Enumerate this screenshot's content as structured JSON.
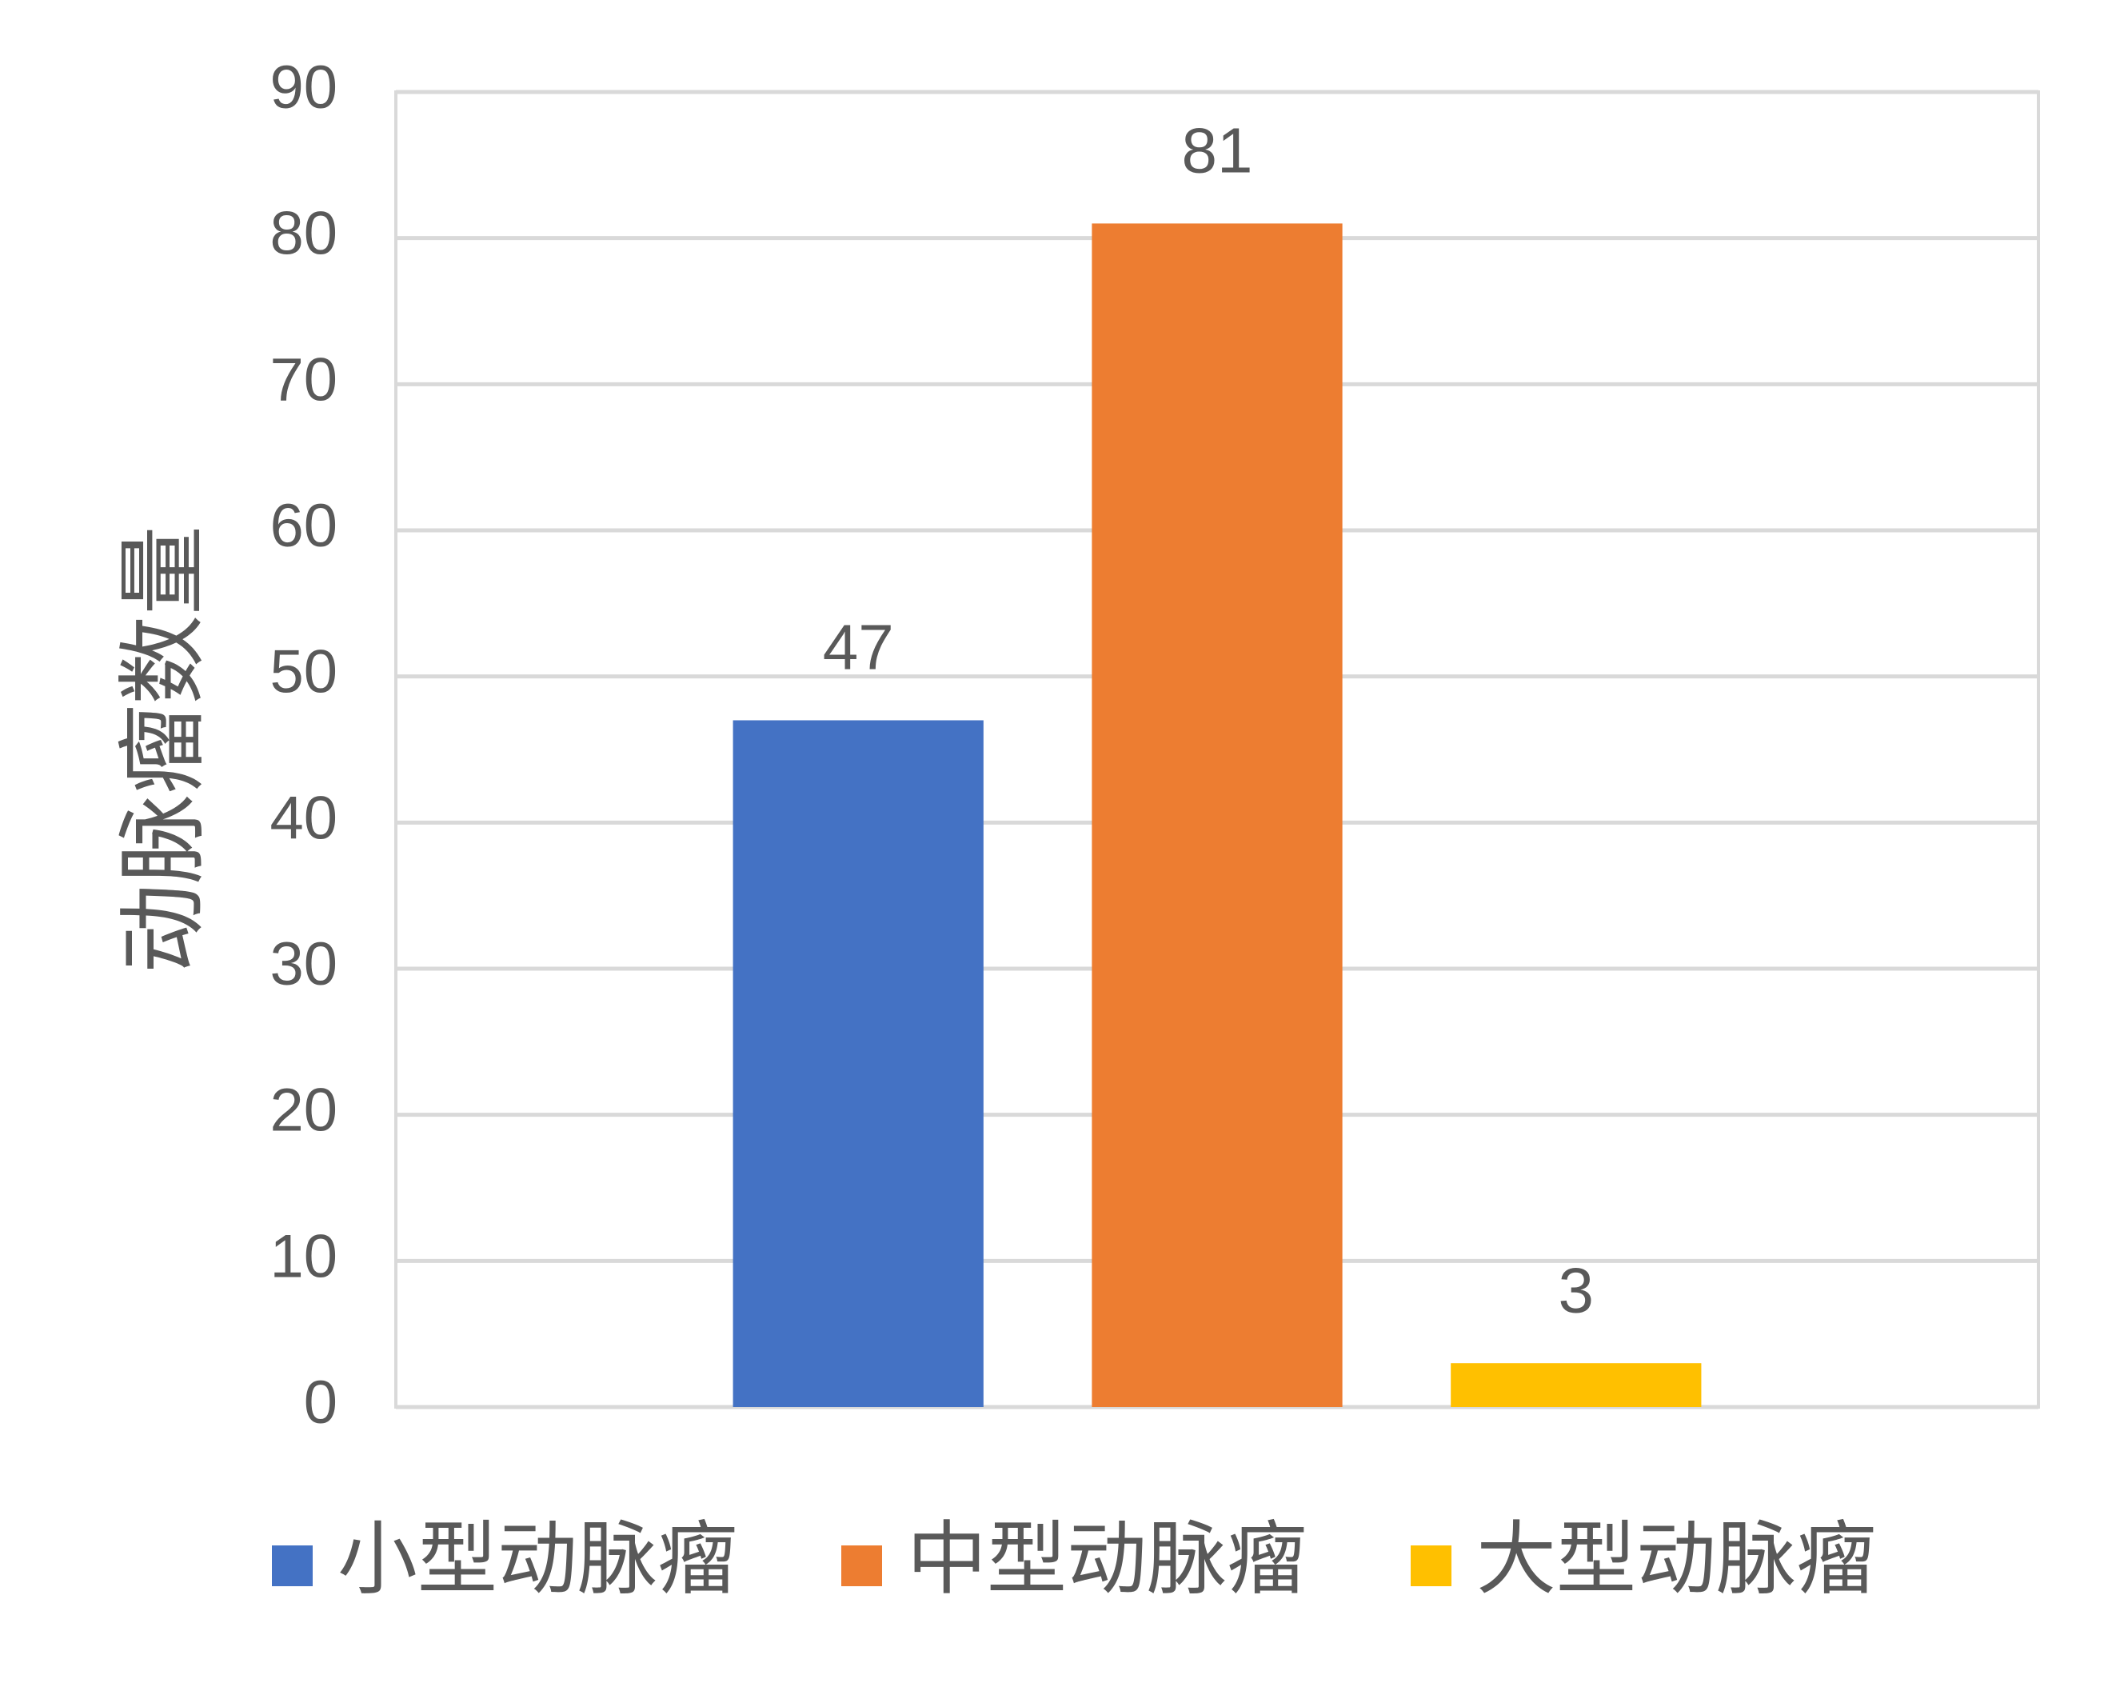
{
  "chart_data": {
    "type": "bar",
    "y_label": "动脉瘤数量",
    "categories": [
      null
    ],
    "series": [
      {
        "name": "小型动脉瘤",
        "color": "#4472c4",
        "values": [
          47
        ]
      },
      {
        "name": "中型动脉瘤",
        "color": "#ed7d31",
        "values": [
          81
        ]
      },
      {
        "name": "大型动脉瘤",
        "color": "#ffc000",
        "values": [
          3
        ]
      }
    ],
    "ylim": [
      0,
      90
    ],
    "yticks": [
      0,
      10,
      20,
      30,
      40,
      50,
      60,
      70,
      80,
      90
    ],
    "grid": true,
    "legend": "bottom"
  }
}
